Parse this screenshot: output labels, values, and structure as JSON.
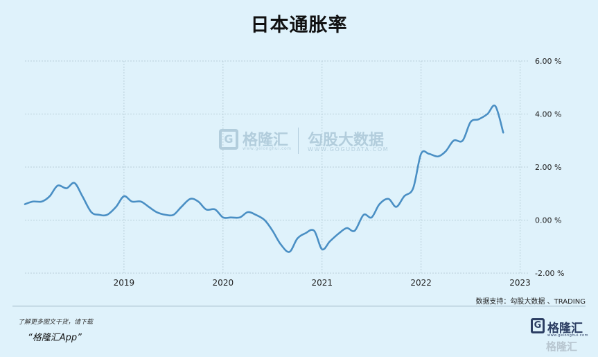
{
  "page": {
    "title": "日本通胀率",
    "source": "数据支持：勾股大数据 、TRADING",
    "download_line": "了解更多图文干货，请下载",
    "download_app": "“格隆汇App”"
  },
  "watermark": {
    "brand1": "格隆汇",
    "url1": "www.gelonghui.com",
    "brand2": "勾股大数据",
    "url2": "WWW.GOGUDATA.COM"
  },
  "brand": {
    "name": "格隆汇",
    "url": "www.gelonghui.com",
    "ghost": "格隆汇"
  },
  "colors": {
    "line": "#4a8fc4",
    "background": "#dff2fb",
    "grid": "#b9cfda"
  },
  "chart_data": {
    "type": "line",
    "title": "日本通胀率",
    "xlabel": "",
    "ylabel": "",
    "x_ticks": [
      "2019",
      "2020",
      "2021",
      "2022",
      "2023"
    ],
    "y_ticks": [
      "6.00 %",
      "4.00 %",
      "2.00 %",
      "0.00 %",
      "-2.00 %"
    ],
    "xlim": [
      2018.0,
      2023.08
    ],
    "ylim": [
      -2,
      6
    ],
    "grid": true,
    "series": [
      {
        "values": [
          [
            2018.0,
            0.6
          ],
          [
            2018.08,
            0.7
          ],
          [
            2018.17,
            0.7
          ],
          [
            2018.25,
            0.9
          ],
          [
            2018.33,
            1.3
          ],
          [
            2018.42,
            1.2
          ],
          [
            2018.5,
            1.4
          ],
          [
            2018.58,
            0.9
          ],
          [
            2018.67,
            0.3
          ],
          [
            2018.75,
            0.2
          ],
          [
            2018.83,
            0.2
          ],
          [
            2018.92,
            0.5
          ],
          [
            2019.0,
            0.9
          ],
          [
            2019.08,
            0.7
          ],
          [
            2019.17,
            0.7
          ],
          [
            2019.25,
            0.5
          ],
          [
            2019.33,
            0.3
          ],
          [
            2019.42,
            0.2
          ],
          [
            2019.5,
            0.2
          ],
          [
            2019.58,
            0.5
          ],
          [
            2019.67,
            0.8
          ],
          [
            2019.75,
            0.7
          ],
          [
            2019.83,
            0.4
          ],
          [
            2019.92,
            0.4
          ],
          [
            2020.0,
            0.1
          ],
          [
            2020.08,
            0.1
          ],
          [
            2020.17,
            0.1
          ],
          [
            2020.25,
            0.3
          ],
          [
            2020.33,
            0.2
          ],
          [
            2020.42,
            0.0
          ],
          [
            2020.5,
            -0.4
          ],
          [
            2020.58,
            -0.9
          ],
          [
            2020.67,
            -1.2
          ],
          [
            2020.75,
            -0.7
          ],
          [
            2020.83,
            -0.5
          ],
          [
            2020.92,
            -0.4
          ],
          [
            2021.0,
            -1.1
          ],
          [
            2021.08,
            -0.8
          ],
          [
            2021.17,
            -0.5
          ],
          [
            2021.25,
            -0.3
          ],
          [
            2021.33,
            -0.4
          ],
          [
            2021.42,
            0.2
          ],
          [
            2021.5,
            0.1
          ],
          [
            2021.58,
            0.6
          ],
          [
            2021.67,
            0.8
          ],
          [
            2021.75,
            0.5
          ],
          [
            2021.83,
            0.9
          ],
          [
            2021.92,
            1.2
          ],
          [
            2022.0,
            2.5
          ],
          [
            2022.08,
            2.5
          ],
          [
            2022.17,
            2.4
          ],
          [
            2022.25,
            2.6
          ],
          [
            2022.33,
            3.0
          ],
          [
            2022.42,
            3.0
          ],
          [
            2022.5,
            3.7
          ],
          [
            2022.58,
            3.8
          ],
          [
            2022.67,
            4.0
          ],
          [
            2022.75,
            4.3
          ],
          [
            2022.83,
            3.3
          ]
        ]
      }
    ]
  }
}
